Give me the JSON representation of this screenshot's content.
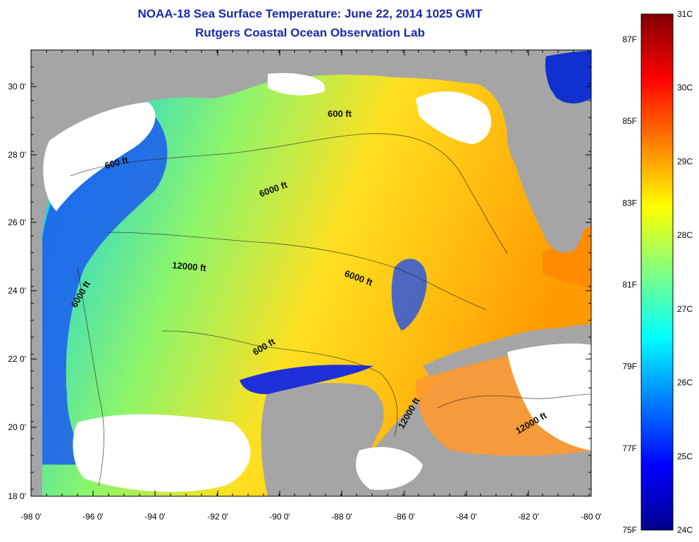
{
  "title": {
    "line1": "NOAA-18 Sea Surface Temperature:  June 22, 2014 1025 GMT",
    "line2": "Rutgers Coastal Ocean Observation Lab"
  },
  "lat_ticks": [
    "30 0'",
    "28 0'",
    "26 0'",
    "24 0'",
    "22 0'",
    "20 0'",
    "18 0'"
  ],
  "lon_ticks": [
    "-98 0'",
    "-96 0'",
    "-94 0'",
    "-92 0'",
    "-90 0'",
    "-88 0'",
    "-86 0'",
    "-84 0'",
    "-82 0'",
    "-80 0'"
  ],
  "colorbar": {
    "celsius_labels": [
      "31C",
      "30C",
      "29C",
      "28C",
      "27C",
      "26C",
      "25C",
      "24C"
    ],
    "fahrenheit_labels": [
      "87F",
      "85F",
      "83F",
      "81F",
      "79F",
      "77F",
      "75F"
    ],
    "colors": [
      "#00008f",
      "#0000ff",
      "#0080ff",
      "#00ffff",
      "#80ff80",
      "#ffff00",
      "#ff8000",
      "#ff0000",
      "#800000"
    ]
  },
  "contour_labels": [
    "600 ft",
    "600 ft",
    "6000 ft",
    "12000 ft",
    "6000 ft",
    "6000 ft",
    "600 ft",
    "12000 ft",
    "12000 ft"
  ],
  "colors": {
    "land": "#a5a5a5",
    "cloud": "#ffffff",
    "title": "#1a2aa8"
  }
}
